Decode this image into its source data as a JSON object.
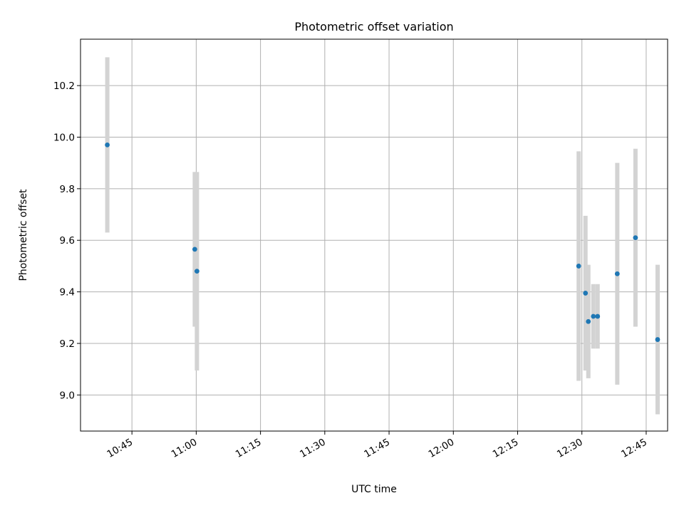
{
  "chart_data": {
    "type": "scatter",
    "title": "Photometric offset variation",
    "xlabel": "UTC time",
    "ylabel": "Photometric offset",
    "x_axis_type": "time",
    "xlim": [
      "10:33",
      "12:50"
    ],
    "ylim": [
      8.86,
      10.38
    ],
    "x_ticks": [
      "10:45",
      "11:00",
      "11:15",
      "11:30",
      "11:45",
      "12:00",
      "12:15",
      "12:30",
      "12:45"
    ],
    "y_ticks": [
      9.0,
      9.2,
      9.4,
      9.6,
      9.8,
      10.0,
      10.2
    ],
    "y_tick_labels": [
      "9.0",
      "9.2",
      "9.4",
      "9.6",
      "9.8",
      "10.0",
      "10.2"
    ],
    "grid": true,
    "colors": {
      "point": "#1f77b4",
      "errorbar": "#d3d3d3"
    },
    "points": [
      {
        "x": "10:39:15",
        "y": 9.97,
        "err": 0.34
      },
      {
        "x": "10:59:40",
        "y": 9.565,
        "err": 0.3
      },
      {
        "x": "11:00:10",
        "y": 9.48,
        "err": 0.385
      },
      {
        "x": "12:29:15",
        "y": 9.5,
        "err": 0.445
      },
      {
        "x": "12:30:50",
        "y": 9.395,
        "err": 0.3
      },
      {
        "x": "12:31:30",
        "y": 9.285,
        "err": 0.22
      },
      {
        "x": "12:32:40",
        "y": 9.305,
        "err": 0.125
      },
      {
        "x": "12:33:40",
        "y": 9.305,
        "err": 0.125
      },
      {
        "x": "12:38:15",
        "y": 9.47,
        "err": 0.43
      },
      {
        "x": "12:42:30",
        "y": 9.61,
        "err": 0.345
      },
      {
        "x": "12:47:40",
        "y": 9.215,
        "err": 0.29
      }
    ]
  }
}
